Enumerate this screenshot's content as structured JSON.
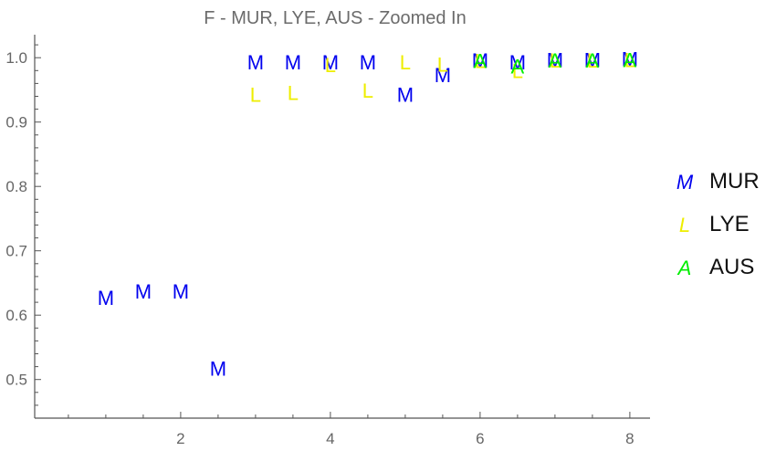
{
  "chart_data": {
    "type": "scatter",
    "title": "F - MUR, LYE, AUS - Zoomed In",
    "xlabel": "",
    "ylabel": "",
    "xlim": [
      0.05,
      8.2
    ],
    "ylim": [
      0.44,
      1.04
    ],
    "x_ticks": [
      2,
      4,
      6,
      8
    ],
    "y_ticks": [
      0.5,
      0.6,
      0.7,
      0.8,
      0.9,
      1.0
    ],
    "y_tick_labels": [
      "0.5",
      "0.6",
      "0.7",
      "0.8",
      "0.9",
      "1.0"
    ],
    "grid": false,
    "legend_position": "right",
    "series": [
      {
        "name": "MUR",
        "marker": "M",
        "color": "#0000ee",
        "points": [
          {
            "x": 1.0,
            "y": 0.627
          },
          {
            "x": 1.5,
            "y": 0.637
          },
          {
            "x": 2.0,
            "y": 0.637
          },
          {
            "x": 2.5,
            "y": 0.517
          },
          {
            "x": 3.0,
            "y": 0.993
          },
          {
            "x": 3.5,
            "y": 0.993
          },
          {
            "x": 4.0,
            "y": 0.993
          },
          {
            "x": 4.5,
            "y": 0.993
          },
          {
            "x": 5.0,
            "y": 0.943
          },
          {
            "x": 5.5,
            "y": 0.973
          },
          {
            "x": 6.0,
            "y": 0.996
          },
          {
            "x": 6.5,
            "y": 0.993
          },
          {
            "x": 7.0,
            "y": 0.997
          },
          {
            "x": 7.5,
            "y": 0.997
          },
          {
            "x": 8.0,
            "y": 0.998
          }
        ]
      },
      {
        "name": "LYE",
        "marker": "L",
        "color": "#eeee00",
        "points": [
          {
            "x": 3.0,
            "y": 0.943
          },
          {
            "x": 3.5,
            "y": 0.946
          },
          {
            "x": 4.0,
            "y": 0.989
          },
          {
            "x": 4.5,
            "y": 0.949
          },
          {
            "x": 5.0,
            "y": 0.993
          },
          {
            "x": 5.5,
            "y": 0.99
          },
          {
            "x": 6.0,
            "y": 0.995
          },
          {
            "x": 6.5,
            "y": 0.98
          },
          {
            "x": 7.0,
            "y": 0.996
          },
          {
            "x": 7.5,
            "y": 0.996
          },
          {
            "x": 8.0,
            "y": 0.997
          }
        ]
      },
      {
        "name": "AUS",
        "marker": "A",
        "color": "#00ee00",
        "points": [
          {
            "x": 6.0,
            "y": 0.995
          },
          {
            "x": 6.5,
            "y": 0.987
          },
          {
            "x": 7.0,
            "y": 0.996
          },
          {
            "x": 7.5,
            "y": 0.996
          },
          {
            "x": 8.0,
            "y": 0.997
          }
        ]
      }
    ]
  }
}
